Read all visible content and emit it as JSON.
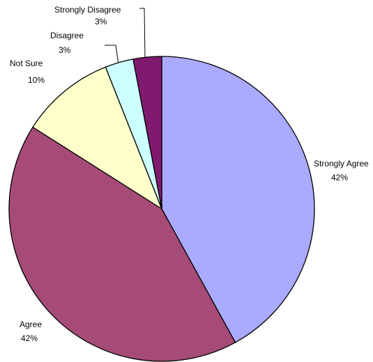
{
  "chart_data": {
    "type": "pie",
    "categories": [
      "Strongly Agree",
      "Agree",
      "Not Sure",
      "Disagree",
      "Strongly Disagree"
    ],
    "values": [
      42,
      42,
      10,
      3,
      3
    ],
    "value_labels": [
      "42%",
      "42%",
      "10%",
      "3%",
      "3%"
    ],
    "colors": [
      "#aaaaff",
      "#a64b77",
      "#ffffcc",
      "#ccffff",
      "#7f1a6f"
    ]
  }
}
